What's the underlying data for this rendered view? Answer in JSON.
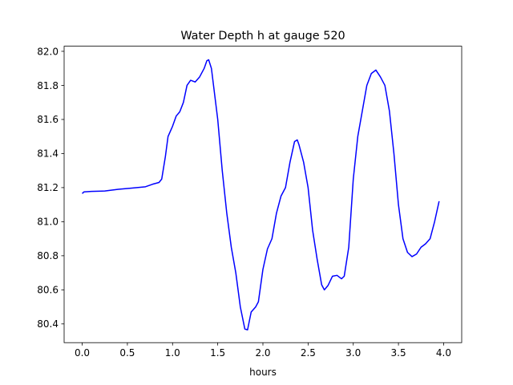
{
  "chart_data": {
    "type": "line",
    "title": "Water Depth h at gauge 520",
    "xlabel": "hours",
    "ylabel": "",
    "xlim": [
      -0.2,
      4.2
    ],
    "ylim": [
      80.29,
      82.03
    ],
    "xticks": [
      "0.0",
      "0.5",
      "1.0",
      "1.5",
      "2.0",
      "2.5",
      "3.0",
      "3.5",
      "4.0"
    ],
    "yticks": [
      "80.4",
      "80.6",
      "80.8",
      "81.0",
      "81.2",
      "81.4",
      "81.6",
      "81.8",
      "82.0"
    ],
    "grid": false,
    "series": [
      {
        "name": "",
        "color": "#0000ff",
        "points": [
          [
            0.0,
            81.165
          ],
          [
            0.02,
            81.175
          ],
          [
            0.1,
            81.178
          ],
          [
            0.25,
            81.18
          ],
          [
            0.4,
            81.19
          ],
          [
            0.55,
            81.197
          ],
          [
            0.7,
            81.205
          ],
          [
            0.78,
            81.22
          ],
          [
            0.85,
            81.23
          ],
          [
            0.88,
            81.25
          ],
          [
            0.92,
            81.38
          ],
          [
            0.95,
            81.5
          ],
          [
            1.0,
            81.56
          ],
          [
            1.04,
            81.62
          ],
          [
            1.08,
            81.645
          ],
          [
            1.12,
            81.7
          ],
          [
            1.16,
            81.8
          ],
          [
            1.2,
            81.83
          ],
          [
            1.25,
            81.82
          ],
          [
            1.3,
            81.85
          ],
          [
            1.35,
            81.9
          ],
          [
            1.38,
            81.945
          ],
          [
            1.4,
            81.95
          ],
          [
            1.43,
            81.9
          ],
          [
            1.5,
            81.6
          ],
          [
            1.55,
            81.3
          ],
          [
            1.6,
            81.05
          ],
          [
            1.65,
            80.85
          ],
          [
            1.7,
            80.7
          ],
          [
            1.75,
            80.5
          ],
          [
            1.8,
            80.37
          ],
          [
            1.83,
            80.365
          ],
          [
            1.87,
            80.47
          ],
          [
            1.92,
            80.5
          ],
          [
            1.95,
            80.53
          ],
          [
            2.0,
            80.72
          ],
          [
            2.05,
            80.84
          ],
          [
            2.1,
            80.9
          ],
          [
            2.15,
            81.05
          ],
          [
            2.2,
            81.15
          ],
          [
            2.25,
            81.2
          ],
          [
            2.3,
            81.35
          ],
          [
            2.35,
            81.47
          ],
          [
            2.38,
            81.48
          ],
          [
            2.4,
            81.45
          ],
          [
            2.45,
            81.35
          ],
          [
            2.5,
            81.2
          ],
          [
            2.55,
            80.95
          ],
          [
            2.6,
            80.78
          ],
          [
            2.65,
            80.63
          ],
          [
            2.68,
            80.6
          ],
          [
            2.72,
            80.625
          ],
          [
            2.77,
            80.68
          ],
          [
            2.82,
            80.685
          ],
          [
            2.87,
            80.665
          ],
          [
            2.9,
            80.68
          ],
          [
            2.95,
            80.85
          ],
          [
            3.0,
            81.25
          ],
          [
            3.05,
            81.5
          ],
          [
            3.1,
            81.65
          ],
          [
            3.15,
            81.8
          ],
          [
            3.2,
            81.87
          ],
          [
            3.25,
            81.89
          ],
          [
            3.3,
            81.85
          ],
          [
            3.35,
            81.8
          ],
          [
            3.4,
            81.65
          ],
          [
            3.45,
            81.4
          ],
          [
            3.5,
            81.1
          ],
          [
            3.55,
            80.9
          ],
          [
            3.6,
            80.82
          ],
          [
            3.65,
            80.795
          ],
          [
            3.7,
            80.81
          ],
          [
            3.75,
            80.85
          ],
          [
            3.8,
            80.87
          ],
          [
            3.85,
            80.9
          ],
          [
            3.9,
            81.0
          ],
          [
            3.95,
            81.12
          ]
        ]
      }
    ]
  }
}
